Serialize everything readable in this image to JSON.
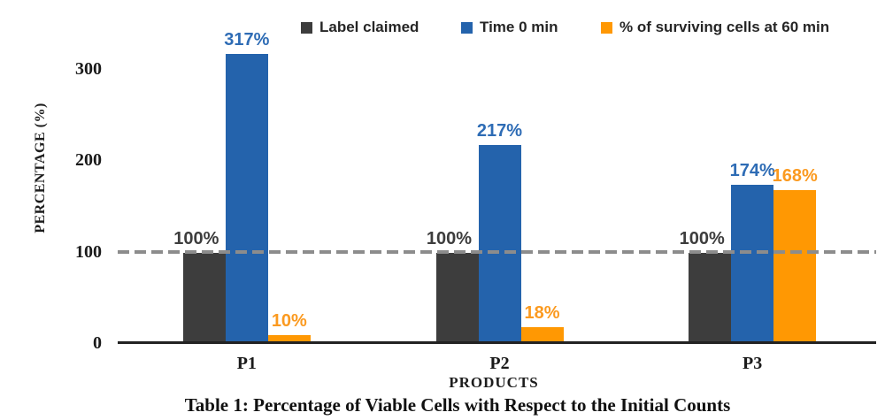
{
  "caption": "Table 1: Percentage of Viable Cells with Respect to the Initial Counts",
  "chart_data": {
    "type": "bar",
    "title": "",
    "xlabel": "PRODUCTS",
    "ylabel": "PERCENTAGE (%)",
    "categories": [
      "P1",
      "P2",
      "P3"
    ],
    "series": [
      {
        "name": "Label claimed",
        "color": "#3D3D3D",
        "label_color": "#3D3D3D",
        "values": [
          100,
          100,
          100
        ],
        "labels": [
          "100%",
          "100%",
          "100%"
        ]
      },
      {
        "name": "Time 0 min",
        "color": "#2463AC",
        "label_color": "#2E6CB5",
        "values": [
          317,
          217,
          174
        ],
        "labels": [
          "317%",
          "217%",
          "174%"
        ]
      },
      {
        "name": "% of surviving cells at 60 min",
        "color": "#FF9803",
        "label_color": "#FB9A20",
        "values": [
          10,
          18,
          168
        ],
        "labels": [
          "10%",
          "18%",
          "168%"
        ]
      }
    ],
    "yticks": [
      0,
      100,
      200,
      300
    ],
    "ylim": [
      0,
      320
    ],
    "reference_line": {
      "value": 100,
      "style": "dashed",
      "color": "#8C8C8C"
    },
    "legend_position": "top",
    "grid": false
  }
}
